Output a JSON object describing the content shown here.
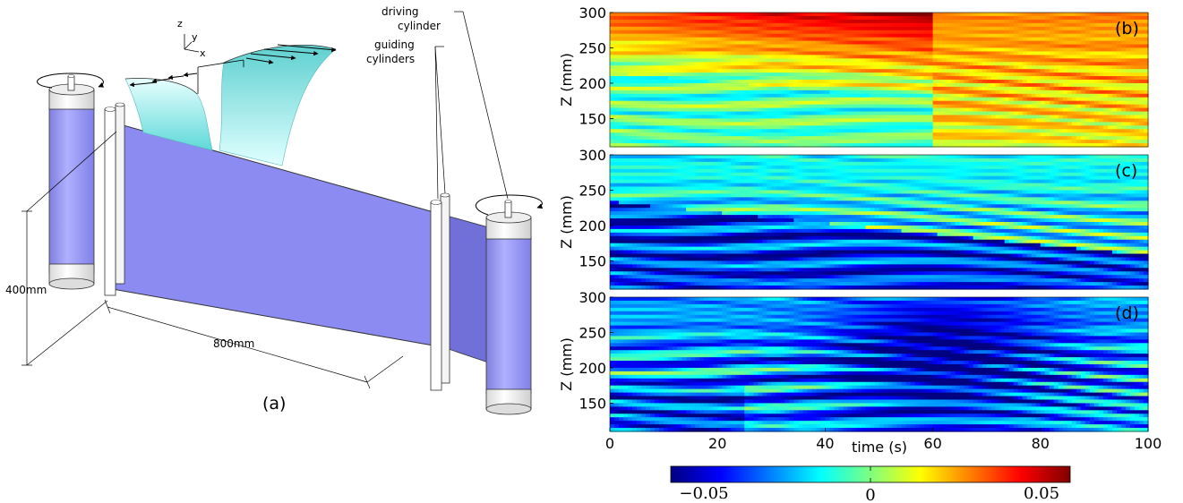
{
  "panel_a": {
    "label": "(a)",
    "axes": {
      "z": "z",
      "y": "y",
      "x": "x"
    },
    "driving_label_1": "driving",
    "driving_label_2": "cylinder",
    "guiding_label_1": "guiding",
    "guiding_label_2": "cylinders",
    "height_label": "400mm",
    "length_label": "800mm"
  },
  "colorbar": {
    "ticks": [
      "−0.05",
      "0",
      "0.05"
    ],
    "colors": [
      "#00007f",
      "#0000ff",
      "#007fff",
      "#00ffff",
      "#7fff7f",
      "#ffff00",
      "#ff7f00",
      "#ff0000",
      "#7f0000"
    ]
  },
  "chart_data": [
    {
      "type": "heatmap",
      "label": "(b)",
      "xlim": [
        0,
        100
      ],
      "ylim": [
        110,
        300
      ],
      "ylabel": "Z (mm)",
      "yticks": [
        "300",
        "250",
        "200",
        "150"
      ],
      "clim": [
        -0.05,
        0.05
      ],
      "description_values": {
        "mean_level": 0.005,
        "upper_left_band": 0.03
      }
    },
    {
      "type": "heatmap",
      "label": "(c)",
      "xlim": [
        0,
        100
      ],
      "ylim": [
        110,
        300
      ],
      "ylabel": "Z (mm)",
      "yticks": [
        "300",
        "250",
        "200",
        "150"
      ],
      "clim": [
        -0.05,
        0.05
      ],
      "description_values": {
        "mean_level": -0.028,
        "upper_band": -0.005
      }
    },
    {
      "type": "heatmap",
      "label": "(d)",
      "xlim": [
        0,
        100
      ],
      "ylim": [
        110,
        300
      ],
      "ylabel": "Z (mm)",
      "yticks": [
        "300",
        "250",
        "200",
        "150"
      ],
      "xlabel": "time (s)",
      "xticks": [
        "0",
        "20",
        "40",
        "60",
        "80",
        "100"
      ],
      "clim": [
        -0.05,
        0.05
      ],
      "description_values": {
        "mean_level": -0.03,
        "dark_core": -0.05
      }
    }
  ]
}
